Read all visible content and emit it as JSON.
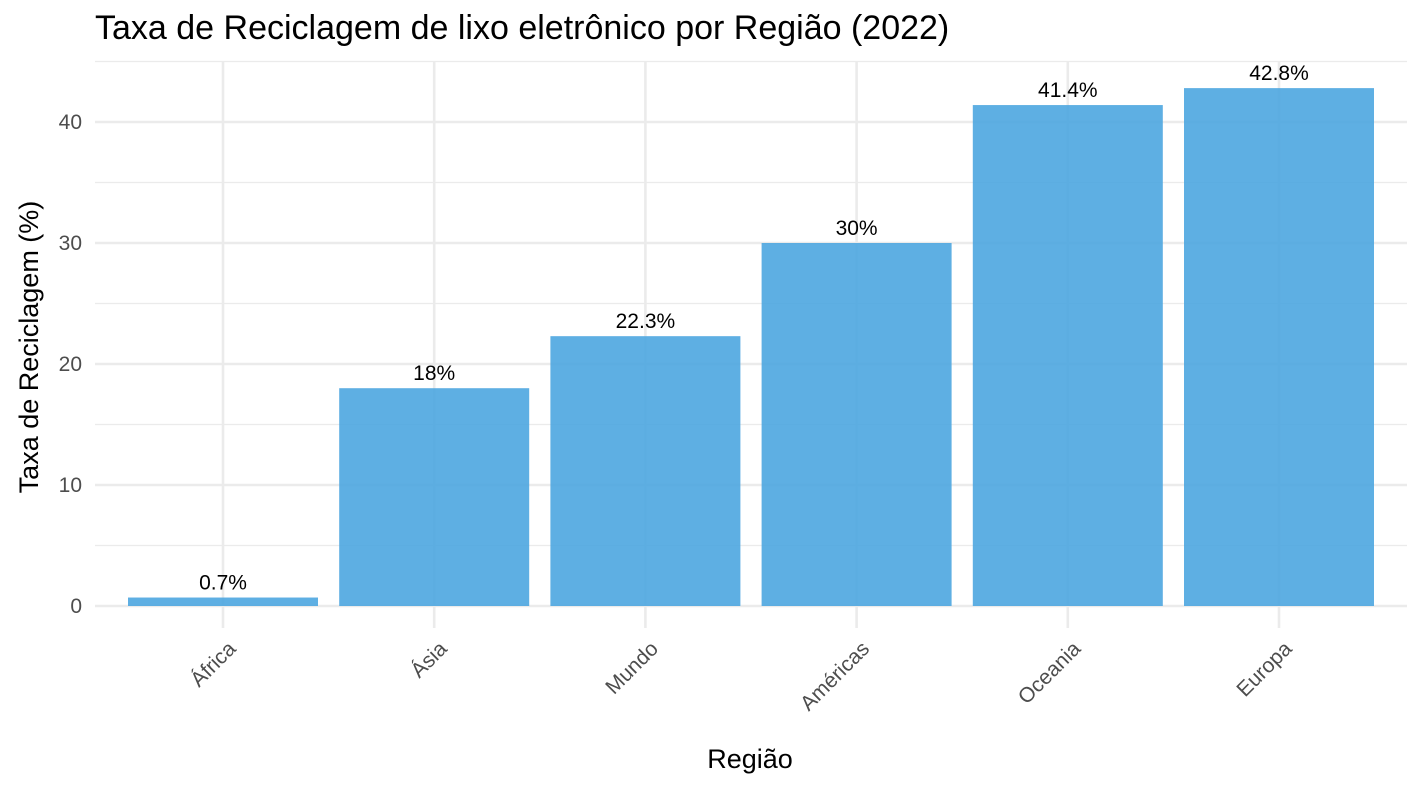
{
  "chart_data": {
    "type": "bar",
    "title": "Taxa de Reciclagem de lixo eletrônico por Região (2022)",
    "xlabel": "Região",
    "ylabel": "Taxa de Reciclagem (%)",
    "categories": [
      "África",
      "Ásia",
      "Mundo",
      "Américas",
      "Oceania",
      "Europa"
    ],
    "values": [
      0.7,
      18,
      22.3,
      30,
      41.4,
      42.8
    ],
    "data_labels": [
      "0.7%",
      "18%",
      "22.3%",
      "30%",
      "41.4%",
      "42.8%"
    ],
    "y_ticks": [
      0,
      10,
      20,
      30,
      40
    ],
    "y_tick_labels": [
      "0",
      "10",
      "20",
      "30",
      "40"
    ],
    "ylim": [
      0,
      45
    ],
    "bar_color": "#4da6e0",
    "grid": true,
    "legend": "none",
    "x_tick_rotation": 45
  }
}
